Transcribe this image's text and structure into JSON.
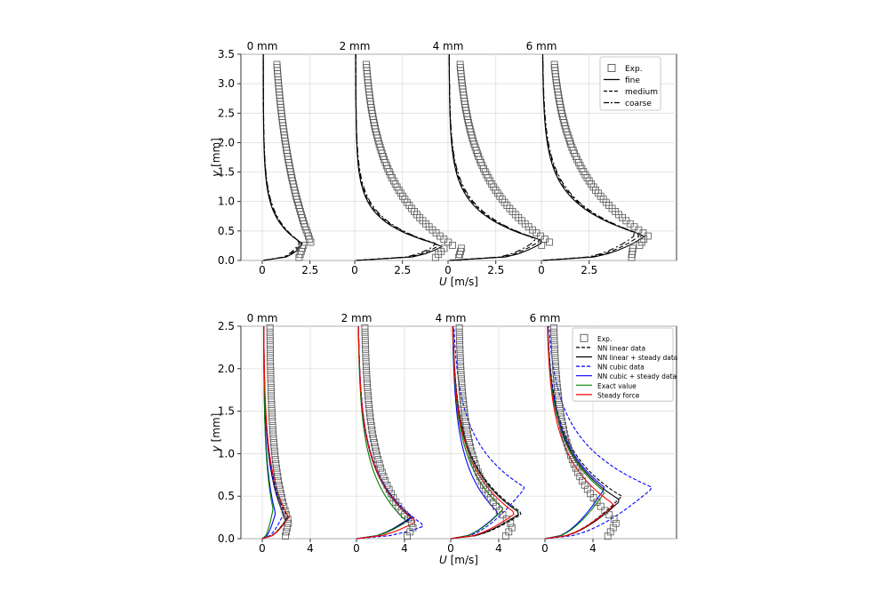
{
  "chart_data": [
    {
      "type": "line",
      "panel": "top",
      "stations": [
        "0 mm",
        "2 mm",
        "4 mm",
        "6 mm"
      ],
      "ylabel_var": "y",
      "ylabel_unit": "[mm]",
      "xlabel_var": "U",
      "xlabel_unit": "[m/s]",
      "ylim": [
        0,
        3.5
      ],
      "yticks": [
        0.0,
        0.5,
        1.0,
        1.5,
        2.0,
        2.5,
        3.0,
        3.5
      ],
      "ytick_labels": [
        "0.0",
        "0.5",
        "1.0",
        "1.5",
        "2.0",
        "2.5",
        "3.0",
        "3.5"
      ],
      "xticks_per_station": [
        0,
        2.5
      ],
      "xtick_labels": [
        "0",
        "2.5",
        "0",
        "2.5",
        "0",
        "2.5",
        "0",
        "2.5"
      ],
      "grid": true,
      "legend_position": "top-right",
      "legend": [
        {
          "label": "Exp.",
          "style": "square-marker"
        },
        {
          "label": "fine",
          "style": "solid"
        },
        {
          "label": "medium",
          "style": "dashed"
        },
        {
          "label": "coarse",
          "style": "dashdot"
        }
      ],
      "exp_profile": [
        {
          "station": "0 mm",
          "y": [
            0.0,
            0.1,
            0.2,
            0.3,
            0.4,
            0.5,
            0.7,
            1.0,
            1.5,
            2.0,
            2.5,
            3.0,
            3.35
          ],
          "u": [
            2.3,
            2.3,
            2.25,
            2.15,
            2.0,
            1.85,
            1.55,
            1.25,
            0.9,
            0.65,
            0.5,
            0.42,
            0.38
          ]
        },
        {
          "station": "2 mm",
          "y": [
            0.0,
            0.1,
            0.2,
            0.3,
            0.4,
            0.5,
            0.7,
            1.0,
            1.5,
            2.0,
            2.5,
            3.0,
            3.35
          ],
          "u": [
            3.1,
            3.05,
            2.9,
            2.75,
            2.6,
            2.45,
            2.15,
            1.75,
            1.1,
            0.6,
            0.35,
            0.2,
            0.15
          ]
        },
        {
          "station": "4 mm",
          "y": [
            0.0,
            0.1,
            0.2,
            0.3,
            0.4,
            0.5,
            0.7,
            1.0,
            1.5,
            2.0,
            2.5,
            3.0,
            3.35
          ],
          "u": [
            0.3,
            0.4,
            0.55,
            0.55,
            0.5,
            4.9,
            4.2,
            3.3,
            2.1,
            1.1,
            0.5,
            0.25,
            0.2
          ]
        },
        {
          "station": "6 mm",
          "y": [
            0.0,
            0.1,
            0.2,
            0.3,
            0.4,
            0.5,
            0.7,
            1.0,
            1.5,
            2.0,
            2.5,
            3.0,
            3.35
          ],
          "u": [
            4.6,
            4.7,
            4.9,
            4.9,
            4.85,
            4.6,
            4.1,
            3.3,
            2.1,
            1.1,
            0.5,
            0.25,
            0.2
          ]
        }
      ]
    },
    {
      "type": "line",
      "panel": "bottom",
      "stations": [
        "0 mm",
        "2 mm",
        "4 mm",
        "6 mm"
      ],
      "ylabel_var": "y",
      "ylabel_unit": "[mm]",
      "xlabel_var": "U",
      "xlabel_unit": "[m/s]",
      "ylim": [
        0,
        2.5
      ],
      "yticks": [
        0.0,
        0.5,
        1.0,
        1.5,
        2.0,
        2.5
      ],
      "ytick_labels": [
        "0.0",
        "0.5",
        "1.0",
        "1.5",
        "2.0",
        "2.5"
      ],
      "xticks_per_station": [
        0,
        4
      ],
      "xtick_labels": [
        "0",
        "4",
        "0",
        "4",
        "0",
        "4",
        "0",
        "4"
      ],
      "grid": true,
      "legend_position": "top-right",
      "legend": [
        {
          "label": "Exp.",
          "style": "square-marker",
          "color": "#000000"
        },
        {
          "label": "NN linear data",
          "style": "dashed",
          "color": "#000000"
        },
        {
          "label": "NN linear + steady data",
          "style": "solid",
          "color": "#000000"
        },
        {
          "label": "NN cubic data",
          "style": "dashed",
          "color": "#0000ff"
        },
        {
          "label": "NN cubic + steady data",
          "style": "solid",
          "color": "#0000ff"
        },
        {
          "label": "Exact value",
          "style": "solid",
          "color": "#008000"
        },
        {
          "label": "Steady force",
          "style": "solid",
          "color": "#ff0000"
        }
      ]
    }
  ]
}
